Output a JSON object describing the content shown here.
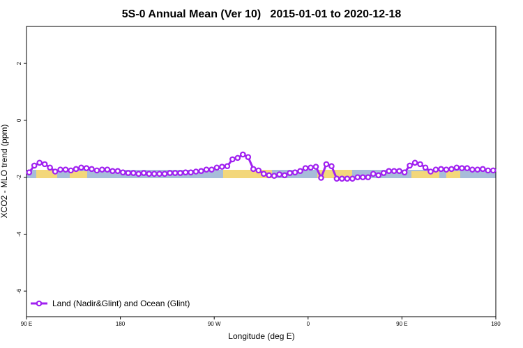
{
  "chart_data": {
    "type": "line",
    "title": "5S-0 Annual Mean (Ver 10)   2015-01-01 to 2020-12-18",
    "x_label": "Longitude (deg E)",
    "y_label": "XCO2 - MLO trend (ppm)",
    "xlim": [
      90,
      540
    ],
    "xticks": [
      {
        "value": 90,
        "label": "90 E"
      },
      {
        "value": 180,
        "label": "180"
      },
      {
        "value": 270,
        "label": "90 W"
      },
      {
        "value": 360,
        "label": "0"
      },
      {
        "value": 450,
        "label": "90 E"
      },
      {
        "value": 540,
        "label": "180"
      }
    ],
    "ylim": [
      -6.9,
      3.3
    ],
    "yticks": [
      -6,
      -4,
      -2,
      0,
      2
    ],
    "legend": "lower left",
    "x": [
      92.5,
      97.5,
      102.5,
      107.5,
      112.5,
      117.5,
      122.5,
      127.5,
      132.5,
      137.5,
      142.5,
      147.5,
      152.5,
      157.5,
      162.5,
      167.5,
      172.5,
      177.5,
      182.5,
      187.5,
      192.5,
      197.5,
      202.5,
      207.5,
      212.5,
      217.5,
      222.5,
      227.5,
      232.5,
      237.5,
      242.5,
      247.5,
      252.5,
      257.5,
      262.5,
      267.5,
      272.5,
      277.5,
      282.5,
      287.5,
      292.5,
      297.5,
      302.5,
      307.5,
      312.5,
      317.5,
      322.5,
      327.5,
      332.5,
      337.5,
      342.5,
      347.5,
      352.5,
      357.5,
      362.5,
      367.5,
      372.5,
      377.5,
      382.5,
      387.5,
      392.5,
      397.5,
      402.5,
      407.5,
      412.5,
      417.5,
      422.5,
      427.5,
      432.5,
      437.5,
      442.5,
      447.5,
      452.5,
      457.5,
      462.5,
      467.5,
      472.5,
      477.5,
      482.5,
      487.5,
      492.5,
      497.5,
      502.5,
      507.5,
      512.5,
      517.5,
      522.5,
      527.5,
      532.5,
      537.5
    ],
    "series": [
      {
        "name": "Land (Nadir&Glint) and Ocean (Glint)",
        "color": "#a020f0",
        "values": [
          -1.83,
          -1.59,
          -1.49,
          -1.54,
          -1.66,
          -1.8,
          -1.73,
          -1.73,
          -1.76,
          -1.71,
          -1.66,
          -1.68,
          -1.71,
          -1.76,
          -1.73,
          -1.73,
          -1.78,
          -1.78,
          -1.83,
          -1.85,
          -1.85,
          -1.88,
          -1.85,
          -1.88,
          -1.88,
          -1.88,
          -1.88,
          -1.85,
          -1.85,
          -1.85,
          -1.83,
          -1.83,
          -1.8,
          -1.78,
          -1.73,
          -1.73,
          -1.66,
          -1.63,
          -1.61,
          -1.37,
          -1.32,
          -1.2,
          -1.29,
          -1.71,
          -1.76,
          -1.88,
          -1.93,
          -1.95,
          -1.9,
          -1.93,
          -1.85,
          -1.83,
          -1.78,
          -1.68,
          -1.66,
          -1.63,
          -2.02,
          -1.54,
          -1.61,
          -2.05,
          -2.05,
          -2.05,
          -2.05,
          -2.0,
          -2.0,
          -2.0,
          -1.88,
          -1.93,
          -1.85,
          -1.78,
          -1.78,
          -1.78,
          -1.83,
          -1.59,
          -1.49,
          -1.54,
          -1.66,
          -1.8,
          -1.73,
          -1.71,
          -1.73,
          -1.71,
          -1.66,
          -1.68,
          -1.68,
          -1.73,
          -1.73,
          -1.71,
          -1.76,
          -1.76
        ]
      }
    ]
  }
}
